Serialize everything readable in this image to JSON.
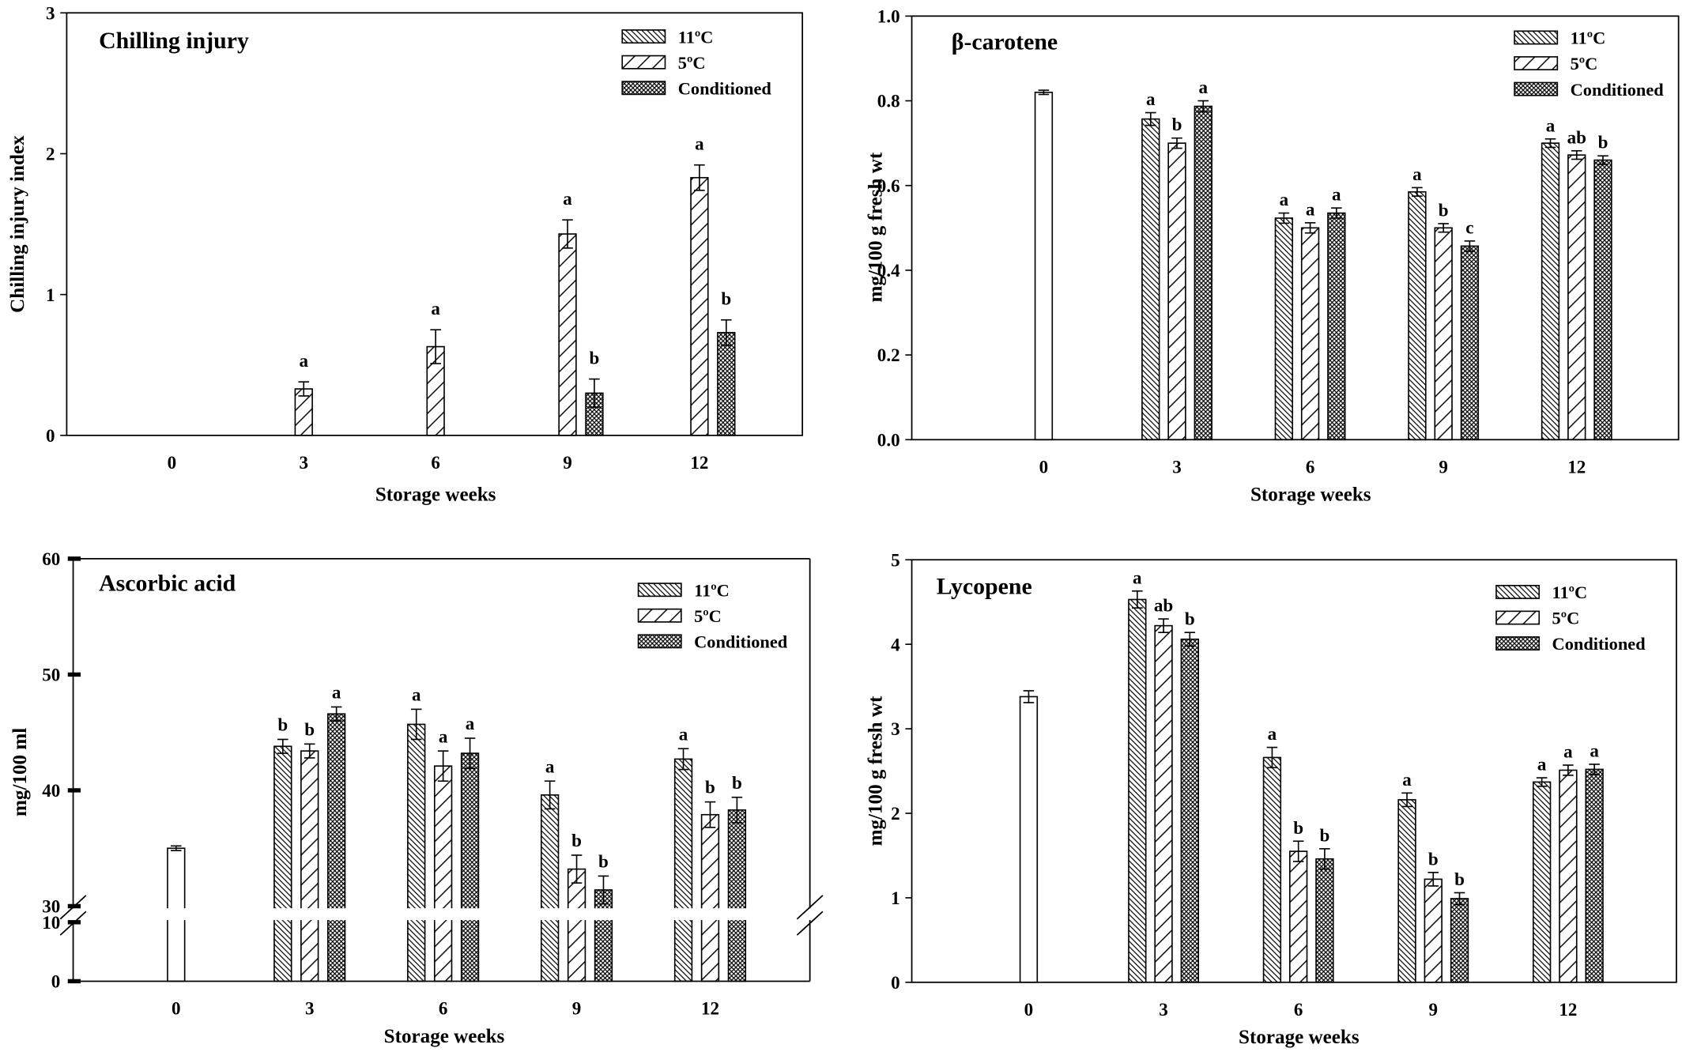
{
  "chart_data": [
    {
      "type": "bar",
      "title": "Chilling injury",
      "xlabel": "Storage weeks",
      "ylabel": "Chilling injury index",
      "categories": [
        "0",
        "3",
        "6",
        "9",
        "12"
      ],
      "ylim": [
        0,
        3
      ],
      "yticks": [
        "0",
        "1",
        "2",
        "3"
      ],
      "grid": false,
      "legend_position": "top-right",
      "series": [
        {
          "name": "11ºC",
          "fill": "backslash-hatch",
          "values": [
            null,
            0,
            0,
            0,
            0
          ],
          "errors": [
            null,
            0,
            0,
            0,
            0
          ],
          "letters": [
            "",
            "",
            "",
            "",
            ""
          ]
        },
        {
          "name": "5ºC",
          "fill": "slash-hatch",
          "values": [
            null,
            0.33,
            0.63,
            1.43,
            1.83
          ],
          "errors": [
            null,
            0.05,
            0.12,
            0.1,
            0.09
          ],
          "letters": [
            "",
            "a",
            "a",
            "a",
            "a"
          ]
        },
        {
          "name": "Conditioned",
          "fill": "crosshatch",
          "values": [
            null,
            0,
            0,
            0.3,
            0.73
          ],
          "errors": [
            null,
            0,
            0,
            0.1,
            0.09
          ],
          "letters": [
            "",
            "",
            "",
            "b",
            "b"
          ]
        }
      ]
    },
    {
      "type": "bar",
      "title": "β-carotene",
      "xlabel": "Storage weeks",
      "ylabel": "mg/100 g fresh wt",
      "categories": [
        "0",
        "3",
        "6",
        "9",
        "12"
      ],
      "ylim": [
        0,
        1
      ],
      "yticks": [
        "0.0",
        "0.2",
        "0.4",
        "0.6",
        "0.8",
        "1.0"
      ],
      "grid": false,
      "legend_position": "top-right",
      "series": [
        {
          "fill": "white",
          "values": [
            0.82,
            null,
            null,
            null,
            null
          ],
          "errors": [
            0.005,
            null,
            null,
            null,
            null
          ]
        },
        {
          "name": "11ºC",
          "fill": "backslash-hatch",
          "values": [
            null,
            0.757,
            0.523,
            0.585,
            0.7
          ],
          "errors": [
            null,
            0.015,
            0.012,
            0.01,
            0.01
          ],
          "letters": [
            "",
            "a",
            "a",
            "a",
            "a"
          ]
        },
        {
          "name": "5ºC",
          "fill": "slash-hatch",
          "values": [
            null,
            0.7,
            0.5,
            0.5,
            0.672
          ],
          "errors": [
            null,
            0.012,
            0.012,
            0.01,
            0.01
          ],
          "letters": [
            "",
            "b",
            "a",
            "b",
            "ab"
          ]
        },
        {
          "name": "Conditioned",
          "fill": "crosshatch",
          "values": [
            null,
            0.787,
            0.535,
            0.457,
            0.66
          ],
          "errors": [
            null,
            0.013,
            0.012,
            0.012,
            0.01
          ],
          "letters": [
            "",
            "a",
            "a",
            "c",
            "b"
          ]
        }
      ]
    },
    {
      "type": "bar",
      "title": "Ascorbic acid",
      "xlabel": "Storage weeks",
      "ylabel": "mg/100 ml",
      "categories": [
        "0",
        "3",
        "6",
        "9",
        "12"
      ],
      "ylim": [
        0,
        60
      ],
      "y_break": [
        10,
        30
      ],
      "yticks": [
        "0",
        "10",
        "30",
        "40",
        "50",
        "60"
      ],
      "grid": false,
      "legend_position": "top-right",
      "series": [
        {
          "fill": "white",
          "values": [
            35.0,
            null,
            null,
            null,
            null
          ],
          "errors": [
            0.2,
            null,
            null,
            null,
            null
          ]
        },
        {
          "name": "11ºC",
          "fill": "backslash-hatch",
          "values": [
            null,
            43.8,
            45.7,
            39.6,
            42.7
          ],
          "errors": [
            null,
            0.6,
            1.3,
            1.2,
            0.9
          ],
          "letters": [
            "",
            "b",
            "a",
            "a",
            "a"
          ]
        },
        {
          "name": "5ºC",
          "fill": "slash-hatch",
          "values": [
            null,
            43.4,
            42.1,
            33.2,
            37.9
          ],
          "errors": [
            null,
            0.6,
            1.3,
            1.2,
            1.1
          ],
          "letters": [
            "",
            "b",
            "a",
            "b",
            "b"
          ]
        },
        {
          "name": "Conditioned",
          "fill": "crosshatch",
          "values": [
            null,
            46.6,
            43.2,
            31.4,
            38.3
          ],
          "errors": [
            null,
            0.6,
            1.3,
            1.2,
            1.1
          ],
          "letters": [
            "",
            "a",
            "a",
            "b",
            "b"
          ]
        }
      ]
    },
    {
      "type": "bar",
      "title": "Lycopene",
      "xlabel": "Storage weeks",
      "ylabel": "mg/100 g fresh wt",
      "categories": [
        "0",
        "3",
        "6",
        "9",
        "12"
      ],
      "ylim": [
        0,
        5
      ],
      "yticks": [
        "0",
        "1",
        "2",
        "3",
        "4",
        "5"
      ],
      "grid": false,
      "legend_position": "top-right",
      "series": [
        {
          "fill": "white",
          "values": [
            3.38,
            null,
            null,
            null,
            null
          ],
          "errors": [
            0.07,
            null,
            null,
            null,
            null
          ]
        },
        {
          "name": "11ºC",
          "fill": "backslash-hatch",
          "values": [
            null,
            4.53,
            2.66,
            2.16,
            2.37
          ],
          "errors": [
            null,
            0.1,
            0.12,
            0.08,
            0.05
          ],
          "letters": [
            "",
            "a",
            "a",
            "a",
            "a"
          ]
        },
        {
          "name": "5ºC",
          "fill": "slash-hatch",
          "values": [
            null,
            4.22,
            1.55,
            1.22,
            2.51
          ],
          "errors": [
            null,
            0.08,
            0.12,
            0.08,
            0.06
          ],
          "letters": [
            "",
            "ab",
            "b",
            "b",
            "a"
          ]
        },
        {
          "name": "Conditioned",
          "fill": "crosshatch",
          "values": [
            null,
            4.06,
            1.46,
            0.99,
            2.52
          ],
          "errors": [
            null,
            0.08,
            0.12,
            0.07,
            0.06
          ],
          "letters": [
            "",
            "b",
            "b",
            "b",
            "a"
          ]
        }
      ]
    }
  ]
}
